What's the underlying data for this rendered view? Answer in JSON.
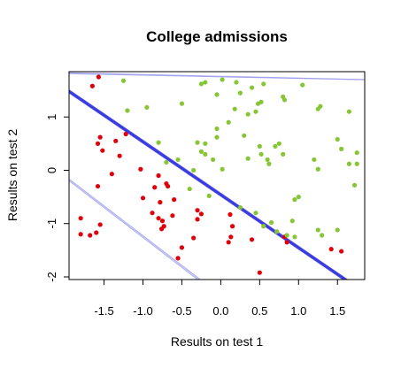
{
  "chart_data": {
    "type": "scatter",
    "title": "College admissions",
    "xlabel": "Results on test 1",
    "ylabel": "Results on test 2",
    "xlim": [
      -1.95,
      1.85
    ],
    "ylim": [
      -2.05,
      1.85
    ],
    "xticks": [
      -1.5,
      -1.0,
      -0.5,
      0.0,
      0.5,
      1.0,
      1.5
    ],
    "xtick_labels": [
      "-1.5",
      "-1.0",
      "-0.5",
      "0.0",
      "0.5",
      "1.0",
      "1.5"
    ],
    "yticks": [
      -2,
      -1,
      0,
      1
    ],
    "ytick_labels": [
      "-2",
      "-1",
      "0",
      "1"
    ],
    "grid": false,
    "colors": {
      "rejected": "#e0000a",
      "admitted": "#86c634",
      "boundary_dense": "#3030e0",
      "boundary_faint": "#9a9aee"
    },
    "series": [
      {
        "color": "#e0000a",
        "points": [
          [
            -1.57,
            1.75
          ],
          [
            -1.65,
            1.58
          ],
          [
            -1.55,
            0.62
          ],
          [
            -1.58,
            0.5
          ],
          [
            -1.52,
            0.37
          ],
          [
            -1.35,
            0.55
          ],
          [
            -1.3,
            0.27
          ],
          [
            -1.4,
            -0.07
          ],
          [
            -1.58,
            -0.3
          ],
          [
            -1.8,
            -0.9
          ],
          [
            -1.8,
            -1.2
          ],
          [
            -1.68,
            -1.22
          ],
          [
            -1.6,
            -1.17
          ],
          [
            -1.55,
            -1.02
          ],
          [
            -1.22,
            0.68
          ],
          [
            -1.03,
            0.02
          ],
          [
            -1.0,
            -0.52
          ],
          [
            -0.8,
            -0.1
          ],
          [
            -0.7,
            -0.25
          ],
          [
            -0.68,
            -0.3
          ],
          [
            -0.85,
            -0.32
          ],
          [
            -0.6,
            -0.55
          ],
          [
            -0.78,
            -0.6
          ],
          [
            -0.88,
            -0.8
          ],
          [
            -0.8,
            -0.9
          ],
          [
            -0.75,
            -0.95
          ],
          [
            -0.73,
            -1.05
          ],
          [
            -0.76,
            -1.1
          ],
          [
            -0.62,
            -0.85
          ],
          [
            -0.3,
            -0.75
          ],
          [
            -0.25,
            -0.82
          ],
          [
            -0.3,
            -0.92
          ],
          [
            -0.5,
            -1.45
          ],
          [
            -0.55,
            -1.65
          ],
          [
            -0.35,
            -1.27
          ],
          [
            0.12,
            -0.83
          ],
          [
            0.15,
            -1.05
          ],
          [
            0.13,
            -1.25
          ],
          [
            0.1,
            -1.35
          ],
          [
            0.4,
            -1.3
          ],
          [
            0.5,
            -1.92
          ],
          [
            0.82,
            -1.25
          ],
          [
            0.85,
            -1.35
          ],
          [
            1.42,
            -1.48
          ],
          [
            1.55,
            -1.52
          ]
        ]
      },
      {
        "color": "#86c634",
        "points": [
          [
            -1.25,
            1.68
          ],
          [
            -1.2,
            1.12
          ],
          [
            -0.95,
            1.18
          ],
          [
            -0.5,
            1.25
          ],
          [
            -0.25,
            1.62
          ],
          [
            -0.2,
            1.65
          ],
          [
            0.02,
            1.7
          ],
          [
            0.2,
            1.65
          ],
          [
            0.25,
            1.45
          ],
          [
            0.4,
            1.55
          ],
          [
            0.55,
            1.62
          ],
          [
            0.8,
            1.38
          ],
          [
            0.82,
            1.32
          ],
          [
            1.05,
            1.6
          ],
          [
            -0.05,
            1.42
          ],
          [
            0.48,
            1.25
          ],
          [
            0.52,
            1.28
          ],
          [
            0.45,
            1.1
          ],
          [
            0.35,
            1.05
          ],
          [
            0.18,
            1.15
          ],
          [
            0.1,
            0.9
          ],
          [
            1.25,
            1.15
          ],
          [
            1.28,
            1.2
          ],
          [
            1.65,
            1.1
          ],
          [
            -0.05,
            0.78
          ],
          [
            0.3,
            0.65
          ],
          [
            -0.05,
            0.62
          ],
          [
            -0.3,
            0.52
          ],
          [
            -0.2,
            0.5
          ],
          [
            -0.8,
            0.52
          ],
          [
            0.5,
            0.45
          ],
          [
            0.52,
            0.3
          ],
          [
            0.7,
            0.45
          ],
          [
            0.75,
            0.5
          ],
          [
            0.8,
            0.3
          ],
          [
            1.5,
            0.58
          ],
          [
            1.55,
            0.4
          ],
          [
            1.75,
            0.33
          ],
          [
            -0.25,
            0.35
          ],
          [
            -0.2,
            0.3
          ],
          [
            -0.1,
            0.2
          ],
          [
            -0.55,
            0.2
          ],
          [
            -0.7,
            0.15
          ],
          [
            -0.35,
            0.0
          ],
          [
            0.02,
            0.02
          ],
          [
            0.35,
            0.22
          ],
          [
            0.6,
            0.2
          ],
          [
            0.62,
            0.12
          ],
          [
            1.2,
            0.2
          ],
          [
            1.25,
            0.02
          ],
          [
            1.65,
            0.12
          ],
          [
            1.75,
            0.12
          ],
          [
            1.72,
            -0.28
          ],
          [
            1.0,
            -0.5
          ],
          [
            0.95,
            -0.55
          ],
          [
            -0.4,
            -0.35
          ],
          [
            -0.15,
            -0.48
          ],
          [
            0.25,
            -0.7
          ],
          [
            0.45,
            -0.8
          ],
          [
            0.65,
            -0.98
          ],
          [
            0.55,
            -1.05
          ],
          [
            0.72,
            -1.15
          ],
          [
            0.85,
            -1.22
          ],
          [
            0.92,
            -0.95
          ],
          [
            0.95,
            -1.25
          ],
          [
            1.25,
            -1.12
          ],
          [
            1.3,
            -1.22
          ],
          [
            1.5,
            -1.12
          ]
        ]
      }
    ],
    "lines": [
      {
        "style": "dense",
        "count": 12,
        "x1": -1.95,
        "y1": 1.48,
        "x2": 1.6,
        "y2": -2.05,
        "spread": 0.06
      },
      {
        "style": "faint",
        "count": 2,
        "x1": -1.95,
        "y1": 1.82,
        "x2": 1.85,
        "y2": 1.7,
        "spread": 0.015
      },
      {
        "style": "faint",
        "count": 2,
        "x1": -1.95,
        "y1": -0.18,
        "x2": -0.28,
        "y2": -2.05,
        "spread": 0.03
      }
    ]
  }
}
